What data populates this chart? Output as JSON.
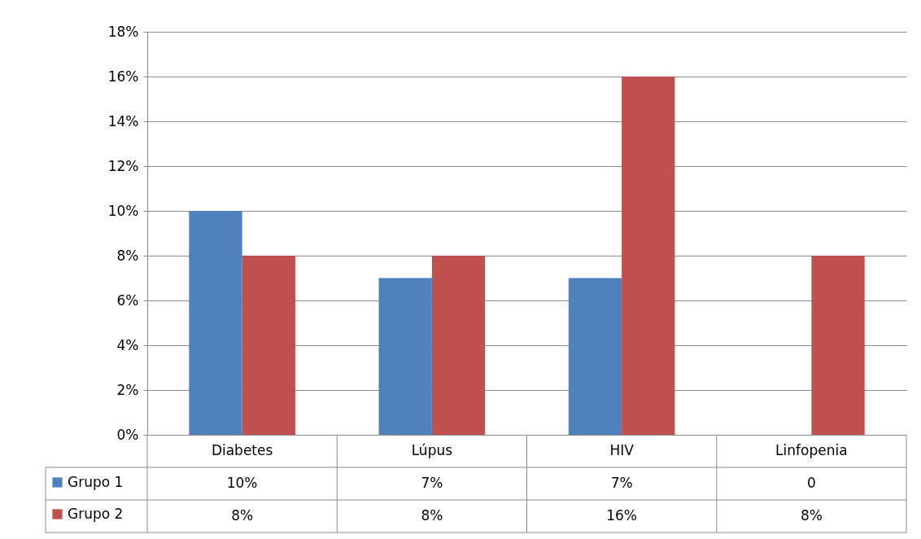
{
  "chart_data": {
    "type": "bar",
    "categories": [
      "Diabetes",
      "Lúpus",
      "HIV",
      "Linfopenia"
    ],
    "series": [
      {
        "name": "Grupo 1",
        "color": "#4f81bd",
        "values": [
          10,
          7,
          7,
          0
        ],
        "value_labels": [
          "10%",
          "7%",
          "7%",
          "0"
        ]
      },
      {
        "name": "Grupo 2",
        "color": "#c0504d",
        "values": [
          8,
          8,
          16,
          8
        ],
        "value_labels": [
          "8%",
          "8%",
          "16%",
          "8%"
        ]
      }
    ],
    "ylim": [
      0,
      18
    ],
    "yticks": [
      {
        "value": 0,
        "label": "0%"
      },
      {
        "value": 2,
        "label": "2%"
      },
      {
        "value": 4,
        "label": "4%"
      },
      {
        "value": 6,
        "label": "6%"
      },
      {
        "value": 8,
        "label": "8%"
      },
      {
        "value": 10,
        "label": "10%"
      },
      {
        "value": 12,
        "label": "12%"
      },
      {
        "value": 14,
        "label": "14%"
      },
      {
        "value": 16,
        "label": "16%"
      },
      {
        "value": 18,
        "label": "18%"
      }
    ],
    "grid": "y",
    "legend": "bottom"
  }
}
